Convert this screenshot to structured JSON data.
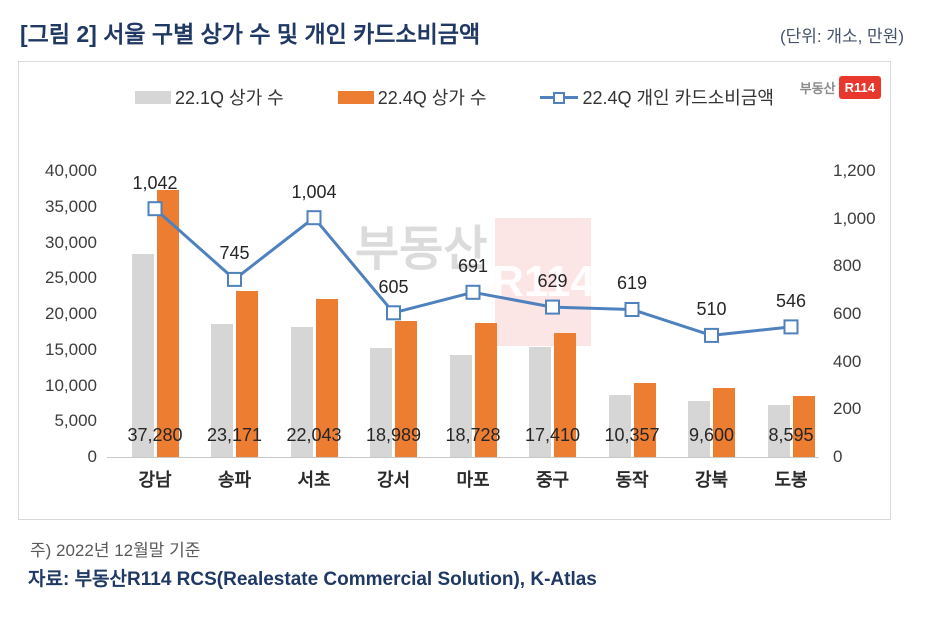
{
  "header": {
    "title": "[그림 2] 서울 구별 상가 수 및 개인 카드소비금액",
    "unit": "(단위: 개소, 만원)"
  },
  "logo": {
    "prefix": "부동산",
    "mark": "R114"
  },
  "watermark": {
    "text": "부동산",
    "mark": "R114"
  },
  "chart_data": {
    "type": "bar",
    "subtype": "grouped-bars-with-line-overlay",
    "title": "서울 구별 상가 수 및 개인 카드소비금액",
    "categories": [
      "강남",
      "송파",
      "서초",
      "강서",
      "마포",
      "중구",
      "동작",
      "강북",
      "도봉"
    ],
    "series": [
      {
        "name": "22.1Q 상가 수",
        "type": "bar",
        "axis": "left",
        "color": "#D6D6D6",
        "values": [
          28400,
          18600,
          18200,
          15200,
          14300,
          15400,
          8700,
          7800,
          7300
        ],
        "values_estimated": true
      },
      {
        "name": "22.4Q 상가 수",
        "type": "bar",
        "axis": "left",
        "color": "#ED7D31",
        "values": [
          37280,
          23171,
          22043,
          18989,
          18728,
          17410,
          10357,
          9600,
          8595
        ],
        "value_labels": [
          "37,280",
          "23,171",
          "22,043",
          "18,989",
          "18,728",
          "17,410",
          "10,357",
          "9,600",
          "8,595"
        ]
      },
      {
        "name": "22.4Q 개인 카드소비금액",
        "type": "line",
        "axis": "right",
        "color": "#4E81BD",
        "marker": "white-square",
        "values": [
          1042,
          745,
          1004,
          605,
          691,
          629,
          619,
          510,
          546
        ],
        "value_labels": [
          "1,042",
          "745",
          "1,004",
          "605",
          "691",
          "629",
          "619",
          "510",
          "546"
        ]
      }
    ],
    "axes": {
      "left": {
        "min": 0,
        "max": 40000,
        "step": 5000,
        "tick_labels": [
          "0",
          "5,000",
          "10,000",
          "15,000",
          "20,000",
          "25,000",
          "30,000",
          "35,000",
          "40,000"
        ]
      },
      "right": {
        "min": 0,
        "max": 1200,
        "step": 200,
        "tick_labels": [
          "0",
          "200",
          "400",
          "600",
          "800",
          "1,000",
          "1,200"
        ]
      }
    },
    "legend_position": "top",
    "grid": false
  },
  "footer": {
    "note": "주) 2022년 12월말 기준",
    "source": "자료: 부동산R114 RCS(Realestate Commercial Solution), K-Atlas"
  },
  "colors": {
    "title": "#1F3864",
    "bar_prev": "#D6D6D6",
    "bar_curr": "#ED7D31",
    "line": "#4E81BD",
    "logo_red": "#E8382D"
  }
}
